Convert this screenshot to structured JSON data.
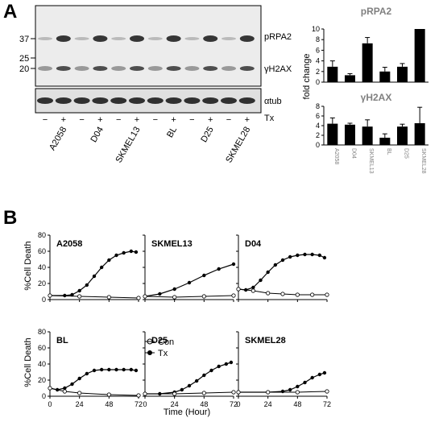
{
  "panels": {
    "a": "A",
    "b": "B"
  },
  "blot": {
    "bands": [
      "pRPA2",
      "γH2AX",
      "αtub"
    ],
    "treatment_label": "Tx",
    "signs": [
      "−",
      "+",
      "−",
      "+",
      "−",
      "+",
      "−",
      "+",
      "−",
      "+",
      "−",
      "+"
    ],
    "cell_lines": [
      "A2058",
      "D04",
      "SKMEL13",
      "BL",
      "D25",
      "SKMEL28"
    ],
    "mw_markers": [
      "37",
      "25",
      "20"
    ]
  },
  "chart_data": [
    {
      "type": "bar",
      "title": "pRPA2",
      "ylabel": "fold change",
      "categories": [
        "A2058",
        "D04",
        "SKMEL13",
        "BL",
        "D25",
        "SKMEL28"
      ],
      "values": [
        2.9,
        1.3,
        7.3,
        2.0,
        2.9,
        10.0
      ],
      "errors": [
        1.1,
        0.3,
        1.1,
        0.8,
        0.6,
        0
      ],
      "ylim": [
        0,
        10
      ],
      "yticks": [
        "0",
        "2",
        "4",
        "6",
        "8",
        "10"
      ]
    },
    {
      "type": "bar",
      "title": "γH2AX",
      "ylabel": "fold change",
      "categories": [
        "A2058",
        "D04",
        "SKMEL13",
        "BL",
        "D25",
        "SKMEL28"
      ],
      "values": [
        4.4,
        4.2,
        3.8,
        1.5,
        3.8,
        4.5
      ],
      "errors": [
        1.2,
        0.3,
        1.4,
        0.8,
        0.5,
        3.3
      ],
      "ylim": [
        0,
        8
      ],
      "yticks": [
        "0",
        "2",
        "4",
        "6",
        "8"
      ]
    },
    {
      "type": "line",
      "layout": "2x3 small multiples",
      "ylabel": "%Cell Death",
      "xlabel": "Time (Hour)",
      "xlim": [
        0,
        72
      ],
      "xticks": [
        "0",
        "24",
        "48",
        "72"
      ],
      "ylim": [
        0,
        80
      ],
      "yticks": [
        "0",
        "20",
        "40",
        "60",
        "80"
      ],
      "legend": {
        "placement": "top-left of D25 panel",
        "con": "Con",
        "tx": "Tx"
      },
      "panels": [
        {
          "title": "A2058",
          "con": [
            [
              0,
              5
            ],
            [
              24,
              4
            ],
            [
              48,
              3
            ],
            [
              72,
              2
            ]
          ],
          "tx": [
            [
              0,
              5
            ],
            [
              12,
              5
            ],
            [
              18,
              6
            ],
            [
              24,
              11
            ],
            [
              30,
              18
            ],
            [
              36,
              29
            ],
            [
              42,
              40
            ],
            [
              48,
              49
            ],
            [
              54,
              55
            ],
            [
              60,
              58
            ],
            [
              66,
              60
            ],
            [
              70,
              59
            ]
          ]
        },
        {
          "title": "SKMEL13",
          "con": [
            [
              0,
              4
            ],
            [
              24,
              3
            ],
            [
              48,
              4
            ],
            [
              72,
              5
            ]
          ],
          "tx": [
            [
              0,
              4
            ],
            [
              12,
              7
            ],
            [
              24,
              13
            ],
            [
              36,
              21
            ],
            [
              48,
              30
            ],
            [
              60,
              38
            ],
            [
              72,
              44
            ]
          ]
        },
        {
          "title": "D04",
          "con": [
            [
              0,
              13
            ],
            [
              12,
              11
            ],
            [
              24,
              8
            ],
            [
              36,
              7
            ],
            [
              48,
              6
            ],
            [
              60,
              6
            ],
            [
              72,
              6
            ]
          ],
          "tx": [
            [
              0,
              13
            ],
            [
              6,
              12
            ],
            [
              12,
              15
            ],
            [
              18,
              24
            ],
            [
              24,
              34
            ],
            [
              30,
              43
            ],
            [
              36,
              49
            ],
            [
              42,
              53
            ],
            [
              48,
              55
            ],
            [
              54,
              56
            ],
            [
              60,
              56
            ],
            [
              66,
              55
            ],
            [
              70,
              52
            ]
          ]
        },
        {
          "title": "BL",
          "con": [
            [
              0,
              10
            ],
            [
              12,
              6
            ],
            [
              24,
              4
            ],
            [
              48,
              2
            ],
            [
              72,
              1
            ]
          ],
          "tx": [
            [
              0,
              10
            ],
            [
              6,
              8
            ],
            [
              12,
              10
            ],
            [
              18,
              15
            ],
            [
              24,
              22
            ],
            [
              30,
              28
            ],
            [
              36,
              32
            ],
            [
              42,
              33
            ],
            [
              48,
              33
            ],
            [
              54,
              33
            ],
            [
              60,
              33
            ],
            [
              66,
              33
            ],
            [
              70,
              32
            ]
          ]
        },
        {
          "title": "D25",
          "con": [
            [
              0,
              3
            ],
            [
              24,
              3
            ],
            [
              48,
              4
            ],
            [
              72,
              5
            ]
          ],
          "tx": [
            [
              0,
              3
            ],
            [
              12,
              3
            ],
            [
              24,
              5
            ],
            [
              30,
              8
            ],
            [
              36,
              13
            ],
            [
              42,
              19
            ],
            [
              48,
              26
            ],
            [
              54,
              32
            ],
            [
              60,
              37
            ],
            [
              66,
              40
            ],
            [
              70,
              42
            ]
          ]
        },
        {
          "title": "SKMEL28",
          "con": [
            [
              0,
              5
            ],
            [
              24,
              5
            ],
            [
              48,
              5
            ],
            [
              72,
              6
            ]
          ],
          "tx": [
            [
              0,
              5
            ],
            [
              24,
              5
            ],
            [
              36,
              6
            ],
            [
              42,
              8
            ],
            [
              48,
              12
            ],
            [
              54,
              17
            ],
            [
              60,
              23
            ],
            [
              66,
              27
            ],
            [
              70,
              29
            ]
          ]
        }
      ]
    }
  ]
}
